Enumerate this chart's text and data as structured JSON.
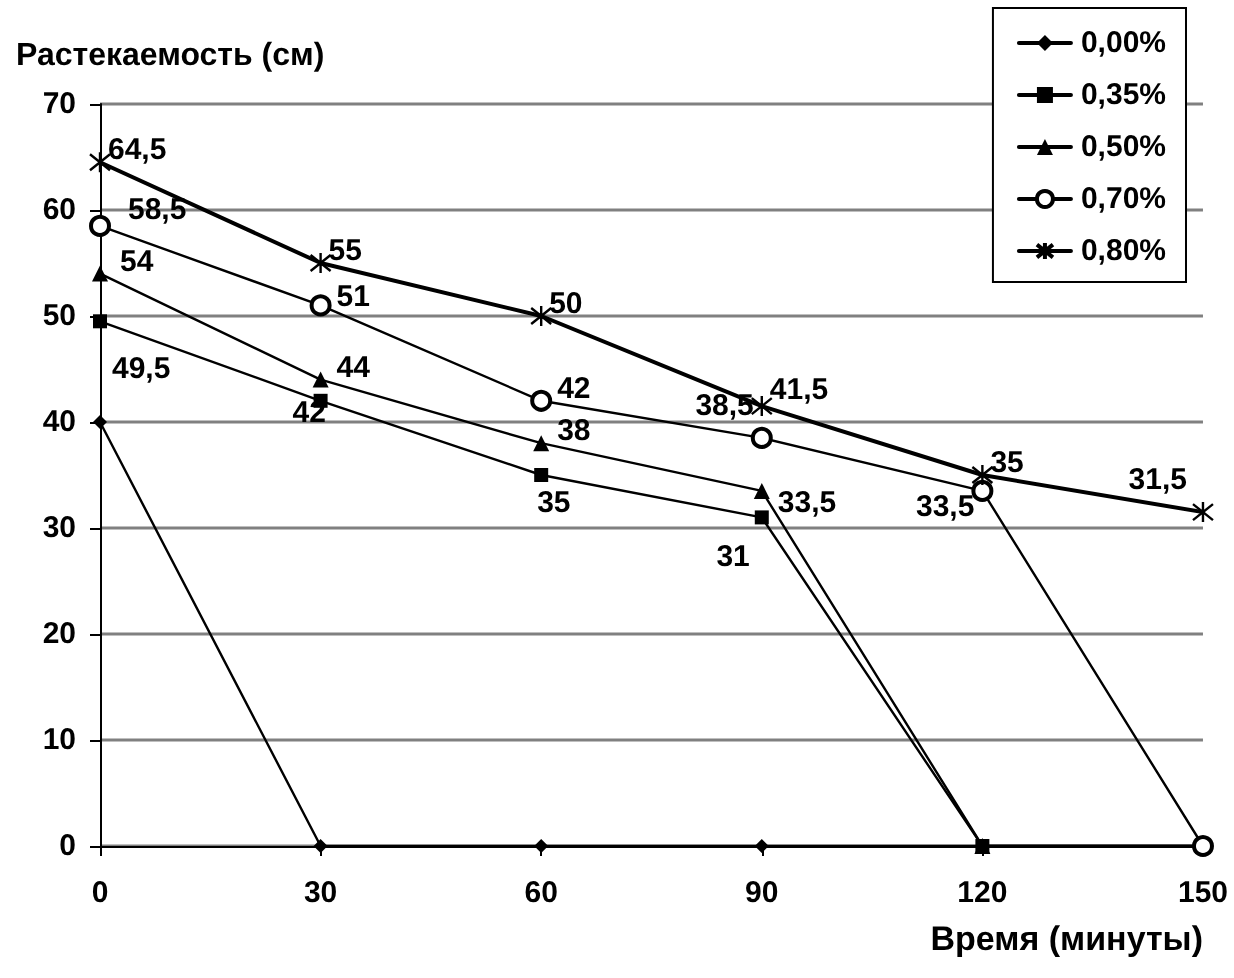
{
  "chart_data": {
    "type": "line",
    "xlabel": "Время (минуты)",
    "ylabel": "Растекаемость (см)",
    "x": [
      0,
      30,
      60,
      90,
      120,
      150
    ],
    "xlim": [
      0,
      150
    ],
    "xticks": [
      0,
      30,
      60,
      90,
      120,
      150
    ],
    "ylim": [
      0,
      70
    ],
    "yticks": [
      0,
      10,
      20,
      30,
      40,
      50,
      60,
      70
    ],
    "grid": "y",
    "legend": "top right",
    "line_style": "solid",
    "series": [
      {
        "name": "0,00%",
        "color": "#000000",
        "marker": "diamond",
        "values": [
          40,
          0,
          0,
          0,
          0,
          0
        ]
      },
      {
        "name": "0,35%",
        "color": "#000000",
        "marker": "square",
        "values": [
          49.5,
          42,
          35,
          31,
          0,
          0
        ],
        "value_labels": [
          "49,5",
          "42",
          "35",
          "31",
          null,
          null
        ]
      },
      {
        "name": "0,50%",
        "color": "#000000",
        "marker": "triangle",
        "values": [
          54,
          44,
          38,
          33.5,
          0,
          0
        ],
        "value_labels": [
          "54",
          "44",
          "38",
          "33,5",
          null,
          null
        ]
      },
      {
        "name": "0,70%",
        "color": "#000000",
        "marker": "circle",
        "values": [
          58.5,
          51,
          42,
          38.5,
          33.5,
          0
        ],
        "value_labels": [
          "58,5",
          "51",
          "42",
          "38,5",
          "33,5",
          null
        ]
      },
      {
        "name": "0,80%",
        "color": "#000000",
        "marker": "cross",
        "values": [
          64.5,
          55,
          50,
          41.5,
          35,
          31.5
        ],
        "value_labels": [
          "64,5",
          "55",
          "50",
          "41,5",
          "35",
          "31,5"
        ]
      }
    ]
  }
}
